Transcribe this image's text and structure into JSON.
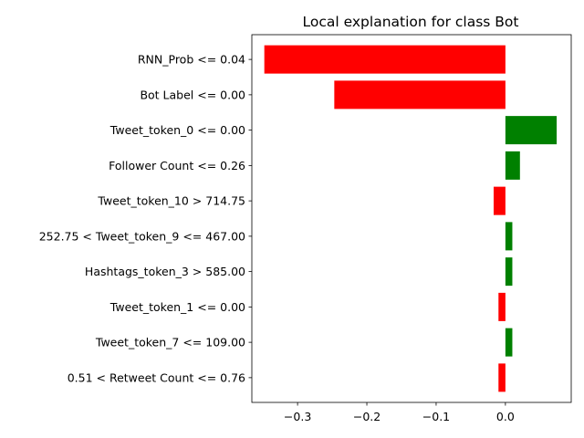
{
  "chart_data": {
    "type": "bar",
    "orientation": "horizontal",
    "title": "Local explanation for class Bot",
    "xlabel": "",
    "ylabel": "",
    "categories": [
      "RNN_Prob <= 0.04",
      "Bot Label <= 0.00",
      "Tweet_token_0 <= 0.00",
      "Follower Count <= 0.26",
      "Tweet_token_10 > 714.75",
      "252.75 < Tweet_token_9 <= 467.00",
      "Hashtags_token_3 > 585.00",
      "Tweet_token_1 <= 0.00",
      "Tweet_token_7 <= 109.00",
      "0.51 < Retweet Count <= 0.76"
    ],
    "values": [
      -0.348,
      -0.247,
      0.074,
      0.021,
      -0.017,
      0.01,
      0.01,
      -0.01,
      0.01,
      -0.01
    ],
    "xlim": [
      -0.366,
      0.095
    ],
    "xticks": [
      -0.3,
      -0.2,
      -0.1,
      0.0
    ],
    "xtick_labels": [
      "−0.3",
      "−0.2",
      "−0.1",
      "0.0"
    ],
    "grid": false,
    "legend": "none",
    "colors": {
      "positive": "#008000",
      "negative": "#ff0000"
    }
  }
}
